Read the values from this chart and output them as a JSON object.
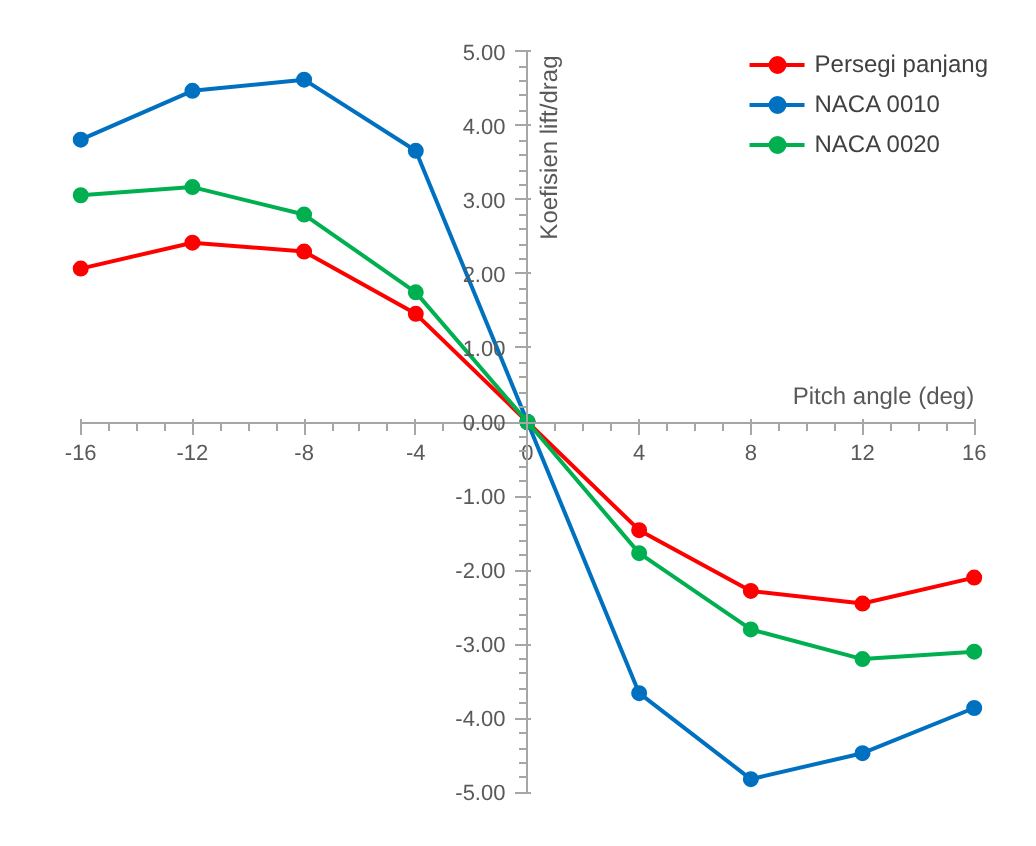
{
  "chart_data": {
    "type": "line",
    "xlabel": "Pitch angle (deg)",
    "ylabel": "Koefisien lift/drag",
    "x": [
      -16,
      -12,
      -8,
      -4,
      0,
      4,
      8,
      12,
      16
    ],
    "series": [
      {
        "name": "Persegi panjang",
        "color": "#ff0000",
        "values": [
          2.07,
          2.42,
          2.3,
          1.46,
          0,
          -1.46,
          -2.28,
          -2.45,
          -2.1
        ]
      },
      {
        "name": "NACA 0010",
        "color": "#0070c0",
        "values": [
          3.81,
          4.47,
          4.62,
          3.66,
          0,
          -3.66,
          -4.82,
          -4.47,
          -3.86
        ]
      },
      {
        "name": "NACA 0020",
        "color": "#00b050",
        "values": [
          3.06,
          3.17,
          2.8,
          1.75,
          0,
          -1.77,
          -2.8,
          -3.2,
          -3.1
        ]
      }
    ],
    "xlim": [
      -16,
      16
    ],
    "ylim": [
      -5,
      5
    ],
    "xticks": [
      -16,
      -12,
      -8,
      -4,
      0,
      4,
      8,
      12,
      16
    ],
    "yticks": [
      {
        "value": -5,
        "label": "-5.00"
      },
      {
        "value": -4,
        "label": "-4.00"
      },
      {
        "value": -3,
        "label": "-3.00"
      },
      {
        "value": -2,
        "label": "-2.00"
      },
      {
        "value": -1,
        "label": "-1.00"
      },
      {
        "value": 0,
        "label": "0.00"
      },
      {
        "value": 1,
        "label": "1.00"
      },
      {
        "value": 2,
        "label": "2.00"
      },
      {
        "value": 3,
        "label": "3.00"
      },
      {
        "value": 4,
        "label": "4.00"
      },
      {
        "value": 5,
        "label": "5.00"
      }
    ],
    "grid": false,
    "legend": "top right",
    "marker": "circle",
    "line_style": "solid"
  }
}
